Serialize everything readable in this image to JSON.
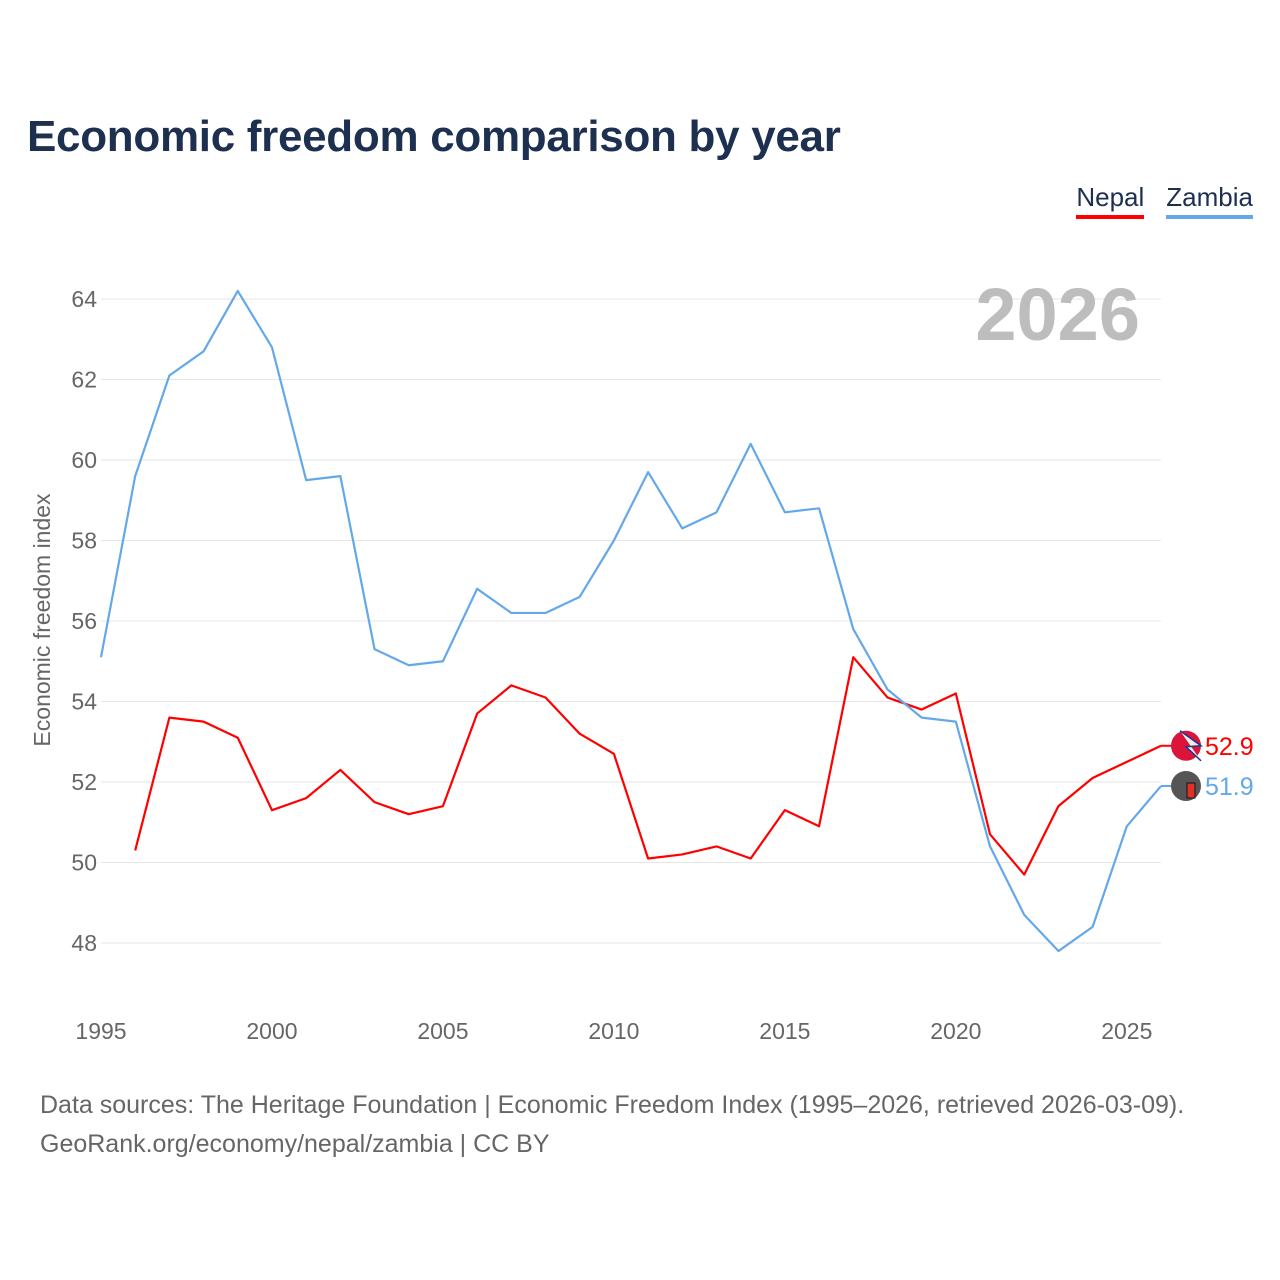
{
  "chart_data": {
    "type": "line",
    "title": "Economic freedom comparison by year",
    "ylabel": "Economic freedom index",
    "xlabel": "",
    "ylim": [
      47,
      65
    ],
    "xlim": [
      1995,
      2026
    ],
    "yticks": [
      48,
      50,
      52,
      54,
      56,
      58,
      60,
      62,
      64
    ],
    "xticks": [
      1995,
      2000,
      2005,
      2010,
      2015,
      2020,
      2025
    ],
    "grid": true,
    "legend_position": "top-right",
    "year_watermark": "2026",
    "series": [
      {
        "name": "Nepal",
        "color": "#ff0000",
        "end_label": "52.9",
        "x": [
          1996,
          1997,
          1998,
          1999,
          2000,
          2001,
          2002,
          2003,
          2004,
          2005,
          2006,
          2007,
          2008,
          2009,
          2010,
          2011,
          2012,
          2013,
          2014,
          2015,
          2016,
          2017,
          2018,
          2019,
          2020,
          2021,
          2022,
          2023,
          2024,
          2025,
          2026
        ],
        "values": [
          50.3,
          53.6,
          53.5,
          53.1,
          51.3,
          51.6,
          52.3,
          51.5,
          51.2,
          51.4,
          53.7,
          54.4,
          54.1,
          53.2,
          52.7,
          50.1,
          50.2,
          50.4,
          50.1,
          51.3,
          50.9,
          55.1,
          54.1,
          53.8,
          54.2,
          50.7,
          49.7,
          51.4,
          52.1,
          52.5,
          52.9
        ]
      },
      {
        "name": "Zambia",
        "color": "#64a8ea",
        "end_label": "51.9",
        "x": [
          1995,
          1996,
          1997,
          1998,
          1999,
          2000,
          2001,
          2002,
          2003,
          2004,
          2005,
          2006,
          2007,
          2008,
          2009,
          2010,
          2011,
          2012,
          2013,
          2014,
          2015,
          2016,
          2017,
          2018,
          2019,
          2020,
          2021,
          2022,
          2023,
          2024,
          2025,
          2026
        ],
        "values": [
          55.1,
          59.6,
          62.1,
          62.7,
          64.2,
          62.8,
          59.5,
          59.6,
          55.3,
          54.9,
          55.0,
          56.8,
          56.2,
          56.2,
          56.6,
          58.0,
          59.7,
          58.3,
          58.7,
          60.4,
          58.7,
          58.8,
          55.8,
          54.3,
          53.6,
          53.5,
          50.4,
          48.7,
          47.8,
          48.4,
          50.9,
          51.9
        ]
      }
    ]
  },
  "source": {
    "line1": "Data sources: The Heritage Foundation | Economic Freedom Index (1995–2026, retrieved 2026-03-09).",
    "line2": "GeoRank.org/economy/nepal/zambia | CC BY"
  }
}
